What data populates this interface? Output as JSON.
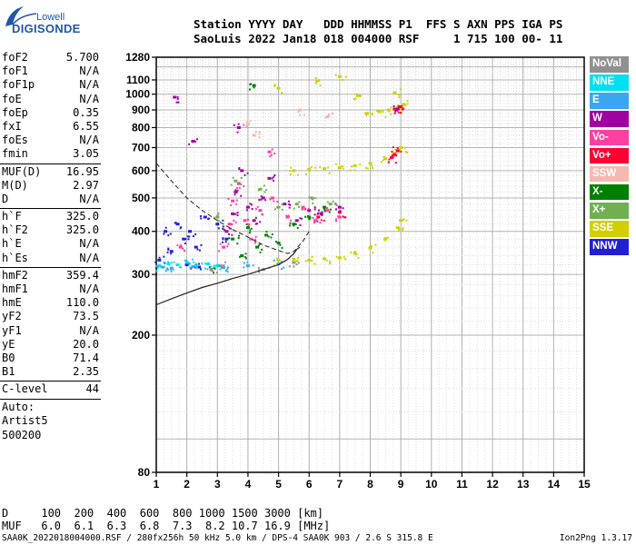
{
  "logo": {
    "line1": "Lowell",
    "line2": "DIGISONDE"
  },
  "header": {
    "line1": "Station YYYY DAY   DDD HHMMSS P1  FFS S AXN PPS IGA PS",
    "line2": "SaoLuis 2022 Jan18 018 004000 RSF     1 715 100 00- 11"
  },
  "params": {
    "group1": [
      {
        "k": "foF2",
        "v": "5.700"
      },
      {
        "k": "foF1",
        "v": "N/A"
      },
      {
        "k": "foF1p",
        "v": "N/A"
      },
      {
        "k": "foE",
        "v": "N/A"
      },
      {
        "k": "foEp",
        "v": "0.35"
      },
      {
        "k": "fxI",
        "v": "6.55"
      },
      {
        "k": "foEs",
        "v": "N/A"
      },
      {
        "k": "fmin",
        "v": "3.05"
      }
    ],
    "group2": [
      {
        "k": "MUF(D)",
        "v": "16.95"
      },
      {
        "k": "M(D)",
        "v": "2.97"
      },
      {
        "k": "D",
        "v": "N/A"
      }
    ],
    "group3": [
      {
        "k": "h`F",
        "v": "325.0"
      },
      {
        "k": "h`F2",
        "v": "325.0"
      },
      {
        "k": "h`E",
        "v": "N/A"
      },
      {
        "k": "h`Es",
        "v": "N/A"
      }
    ],
    "group4": [
      {
        "k": "hmF2",
        "v": "359.4"
      },
      {
        "k": "hmF1",
        "v": "N/A"
      },
      {
        "k": "hmE",
        "v": "110.0"
      },
      {
        "k": "yF2",
        "v": "73.5"
      },
      {
        "k": "yF1",
        "v": "N/A"
      },
      {
        "k": "yE",
        "v": "20.0"
      },
      {
        "k": "B0",
        "v": "71.4"
      },
      {
        "k": "B1",
        "v": "2.35"
      }
    ],
    "clevel": {
      "k": "C-level",
      "v": "44"
    },
    "notes": [
      "Auto:",
      "Artist5",
      "500200"
    ]
  },
  "legend": [
    {
      "label": "NoVal",
      "color": "#909090"
    },
    {
      "label": "NNE",
      "color": "#00e0f0"
    },
    {
      "label": "E",
      "color": "#3aa6f0"
    },
    {
      "label": "W",
      "color": "#a000a0"
    },
    {
      "label": "Vo-",
      "color": "#ff40a0"
    },
    {
      "label": "Vo+",
      "color": "#ff0030"
    },
    {
      "label": "SSW",
      "color": "#f4b8b0"
    },
    {
      "label": "X-",
      "color": "#008000"
    },
    {
      "label": "X+",
      "color": "#70b050"
    },
    {
      "label": "SSE",
      "color": "#d0d000"
    },
    {
      "label": "NNW",
      "color": "#2020d0"
    }
  ],
  "bottom": {
    "d_line": "D     100  200  400  600  800 1000 1500 3000 [km]",
    "muf_line": "MUF   6.0  6.1  6.3  6.8  7.3  8.2 10.7 16.9 [MHz]"
  },
  "footer": {
    "left": "SAA0K_2022018004000.RSF / 280fx256h 50 kHz 5.0 km / DPS-4 SAA0K 903 / 2.6 S 315.8 E",
    "right": "Ion2Png 1.3.17"
  },
  "chart_data": {
    "type": "scatter",
    "xlim": [
      1,
      15
    ],
    "ylim": [
      80,
      1280
    ],
    "y_scale": "log",
    "x_ticks": [
      1,
      2,
      3,
      4,
      5,
      6,
      7,
      8,
      9,
      10,
      11,
      12,
      13,
      14,
      15
    ],
    "y_ticks": [
      80,
      200,
      300,
      400,
      500,
      600,
      700,
      800,
      900,
      1000,
      1100,
      1280
    ],
    "grid": true,
    "series": [
      {
        "color": "#d0d000",
        "points": [
          [
            5.0,
            330
          ],
          [
            5.5,
            332
          ],
          [
            6.0,
            330
          ],
          [
            6.5,
            333
          ],
          [
            7.0,
            335
          ],
          [
            7.5,
            345
          ],
          [
            8.0,
            358
          ],
          [
            8.5,
            380
          ],
          [
            8.9,
            410
          ],
          [
            9.0,
            430
          ]
        ]
      },
      {
        "color": "#d0d000",
        "points": [
          [
            5.5,
            600
          ],
          [
            6.0,
            605
          ],
          [
            6.5,
            608
          ],
          [
            7.0,
            612
          ],
          [
            7.5,
            620
          ],
          [
            8.0,
            630
          ],
          [
            8.5,
            650
          ],
          [
            8.8,
            675
          ],
          [
            9.0,
            700
          ]
        ]
      },
      {
        "color": "#d0d000",
        "points": [
          [
            7.9,
            880
          ],
          [
            8.3,
            890
          ],
          [
            8.6,
            900
          ],
          [
            8.9,
            915
          ],
          [
            9.1,
            935
          ]
        ]
      },
      {
        "color": "#d0d000",
        "points": [
          [
            7.6,
            990
          ],
          [
            8.8,
            1010
          ],
          [
            5.0,
            1040
          ],
          [
            6.3,
            1095
          ],
          [
            7.0,
            1125
          ]
        ]
      },
      {
        "color": "#ff0030",
        "points": [
          [
            8.7,
            655
          ],
          [
            8.8,
            668
          ],
          [
            8.9,
            685
          ],
          [
            8.8,
            905
          ],
          [
            9.0,
            920
          ],
          [
            7.0,
            455
          ],
          [
            6.3,
            440
          ]
        ]
      },
      {
        "color": "#a000a0",
        "points": [
          [
            3.3,
            400
          ],
          [
            3.5,
            450
          ],
          [
            3.6,
            520
          ],
          [
            3.7,
            800
          ],
          [
            3.8,
            600
          ],
          [
            4.0,
            470
          ],
          [
            4.2,
            430
          ],
          [
            4.5,
            500
          ],
          [
            4.7,
            570
          ],
          [
            5.2,
            480
          ],
          [
            5.6,
            430
          ],
          [
            6.0,
            460
          ],
          [
            6.4,
            450
          ],
          [
            7.0,
            470
          ],
          [
            1.6,
            980
          ],
          [
            2.2,
            730
          ],
          [
            8.9,
            905
          ]
        ]
      },
      {
        "color": "#ff40a0",
        "points": [
          [
            3.2,
            360
          ],
          [
            3.4,
            420
          ],
          [
            3.5,
            490
          ],
          [
            3.7,
            550
          ],
          [
            3.9,
            430
          ],
          [
            4.1,
            380
          ],
          [
            4.4,
            460
          ],
          [
            4.8,
            500
          ],
          [
            5.3,
            440
          ],
          [
            5.8,
            470
          ],
          [
            6.2,
            430
          ],
          [
            6.6,
            460
          ],
          [
            7.0,
            440
          ],
          [
            1.8,
            360
          ],
          [
            4.7,
            680
          ]
        ]
      },
      {
        "color": "#008000",
        "points": [
          [
            3.5,
            380
          ],
          [
            3.8,
            340
          ],
          [
            4.0,
            410
          ],
          [
            4.3,
            360
          ],
          [
            4.6,
            390
          ],
          [
            5.0,
            370
          ],
          [
            5.5,
            420
          ],
          [
            6.0,
            440
          ],
          [
            6.5,
            470
          ],
          [
            4.2,
            1060
          ],
          [
            2.8,
            310
          ]
        ]
      },
      {
        "color": "#70b050",
        "points": [
          [
            3.6,
            560
          ],
          [
            4.4,
            530
          ],
          [
            5.0,
            470
          ],
          [
            5.6,
            480
          ],
          [
            6.1,
            500
          ],
          [
            6.7,
            480
          ],
          [
            3.0,
            440
          ]
        ]
      },
      {
        "color": "#2020d0",
        "points": [
          [
            1.1,
            330
          ],
          [
            1.3,
            400
          ],
          [
            1.5,
            350
          ],
          [
            1.7,
            420
          ],
          [
            1.9,
            380
          ],
          [
            2.1,
            400
          ],
          [
            2.3,
            360
          ],
          [
            2.6,
            440
          ],
          [
            3.0,
            420
          ],
          [
            3.3,
            380
          ],
          [
            2.0,
            320
          ],
          [
            2.4,
            315
          ]
        ]
      },
      {
        "color": "#00e0f0",
        "points": [
          [
            1.1,
            318
          ],
          [
            1.4,
            322
          ],
          [
            1.7,
            320
          ],
          [
            2.0,
            325
          ],
          [
            2.3,
            318
          ],
          [
            2.7,
            322
          ],
          [
            3.0,
            318
          ]
        ]
      },
      {
        "color": "#3aa6f0",
        "points": [
          [
            1.2,
            315
          ],
          [
            1.5,
            313
          ],
          [
            2.2,
            316
          ],
          [
            3.2,
            314
          ],
          [
            4.0,
            318
          ],
          [
            5.0,
            322
          ]
        ]
      },
      {
        "color": "#909090",
        "points": [
          [
            2.8,
            310
          ],
          [
            3.1,
            318
          ],
          [
            4.5,
            310
          ],
          [
            5.5,
            325
          ]
        ]
      },
      {
        "color": "#f4b8b0",
        "points": [
          [
            4.0,
            820
          ],
          [
            4.2,
            760
          ],
          [
            5.7,
            900
          ],
          [
            6.6,
            860
          ]
        ]
      }
    ],
    "profile_curve": [
      [
        1.0,
        245
      ],
      [
        1.5,
        255
      ],
      [
        2.0,
        265
      ],
      [
        2.5,
        275
      ],
      [
        3.0,
        283
      ],
      [
        3.5,
        292
      ],
      [
        4.0,
        300
      ],
      [
        4.5,
        310
      ],
      [
        5.0,
        320
      ],
      [
        5.3,
        332
      ],
      [
        5.5,
        345
      ],
      [
        5.6,
        355
      ],
      [
        5.7,
        360
      ]
    ],
    "dashed_curve": [
      [
        1.0,
        630
      ],
      [
        1.5,
        560
      ],
      [
        2.0,
        500
      ],
      [
        2.5,
        460
      ],
      [
        3.0,
        430
      ],
      [
        3.5,
        405
      ],
      [
        4.0,
        385
      ],
      [
        4.5,
        365
      ],
      [
        5.0,
        352
      ],
      [
        5.3,
        345
      ],
      [
        5.5,
        350
      ],
      [
        5.8,
        375
      ],
      [
        6.0,
        400
      ]
    ]
  }
}
